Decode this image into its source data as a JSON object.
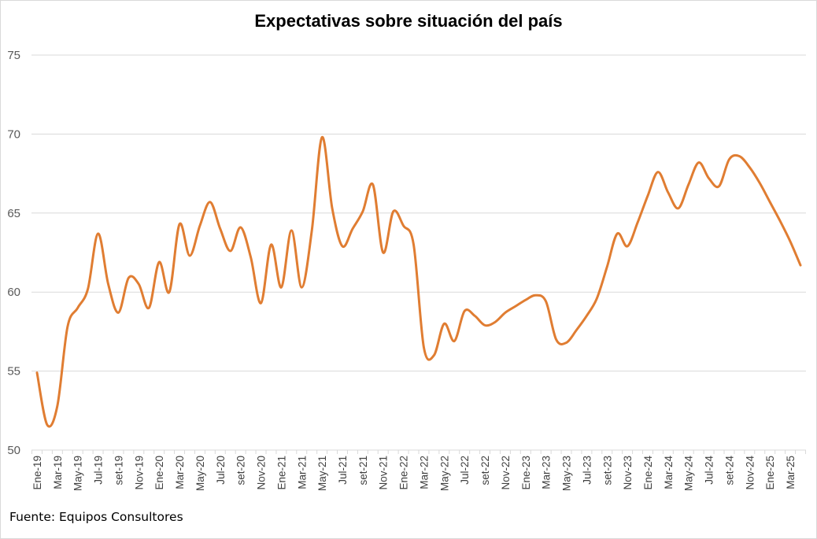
{
  "chart_data": {
    "type": "line",
    "title": "Expectativas sobre situación del país",
    "source": "Fuente: Equipos Consultores",
    "ylim": [
      50,
      75
    ],
    "yticks": [
      "50",
      "55",
      "60",
      "65",
      "70",
      "75"
    ],
    "grid": true,
    "line_color": "#E07D32",
    "grid_color": "#D9D9D9",
    "x_labels": [
      "Ene-19",
      "Mar-19",
      "May-19",
      "Jul-19",
      "set-19",
      "Nov-19",
      "Ene-20",
      "Mar-20",
      "May-20",
      "Jul-20",
      "set-20",
      "Nov-20",
      "Ene-21",
      "Mar-21",
      "May-21",
      "Jul-21",
      "set-21",
      "Nov-21",
      "Ene-22",
      "Mar-22",
      "May-22",
      "Jul-22",
      "set-22",
      "Nov-22",
      "Ene-23",
      "Mar-23",
      "May-23",
      "Jul-23",
      "set-23",
      "Nov-23",
      "Ene-24",
      "Mar-24",
      "May-24",
      "Jul-24",
      "set-24",
      "Nov-24",
      "Ene-25",
      "Mar-25"
    ],
    "series": [
      {
        "values": [
          54.9,
          51.6,
          52.8,
          57.8,
          59.0,
          60.2,
          63.7,
          60.5,
          58.7,
          60.9,
          60.5,
          59.0,
          61.9,
          60.0,
          64.3,
          62.3,
          64.2,
          65.7,
          64.0,
          62.6,
          64.1,
          62.2,
          59.3,
          63.0,
          60.3,
          63.9,
          60.3,
          63.9,
          69.8,
          65.3,
          62.9,
          64.0,
          65.1,
          66.8,
          62.5,
          65.1,
          64.2,
          63.0,
          56.5,
          56.0,
          58.0,
          56.9,
          58.8,
          58.5,
          57.9,
          58.1,
          58.7,
          59.1,
          59.5,
          59.8,
          59.4,
          57.0,
          56.8,
          57.6,
          58.5,
          59.6,
          61.6,
          63.7,
          62.9,
          64.4,
          66.1,
          67.6,
          66.3,
          65.3,
          66.8,
          68.2,
          67.2,
          66.7,
          68.4,
          68.6,
          67.9,
          66.9,
          65.7,
          64.5,
          63.2,
          61.7
        ]
      }
    ]
  }
}
